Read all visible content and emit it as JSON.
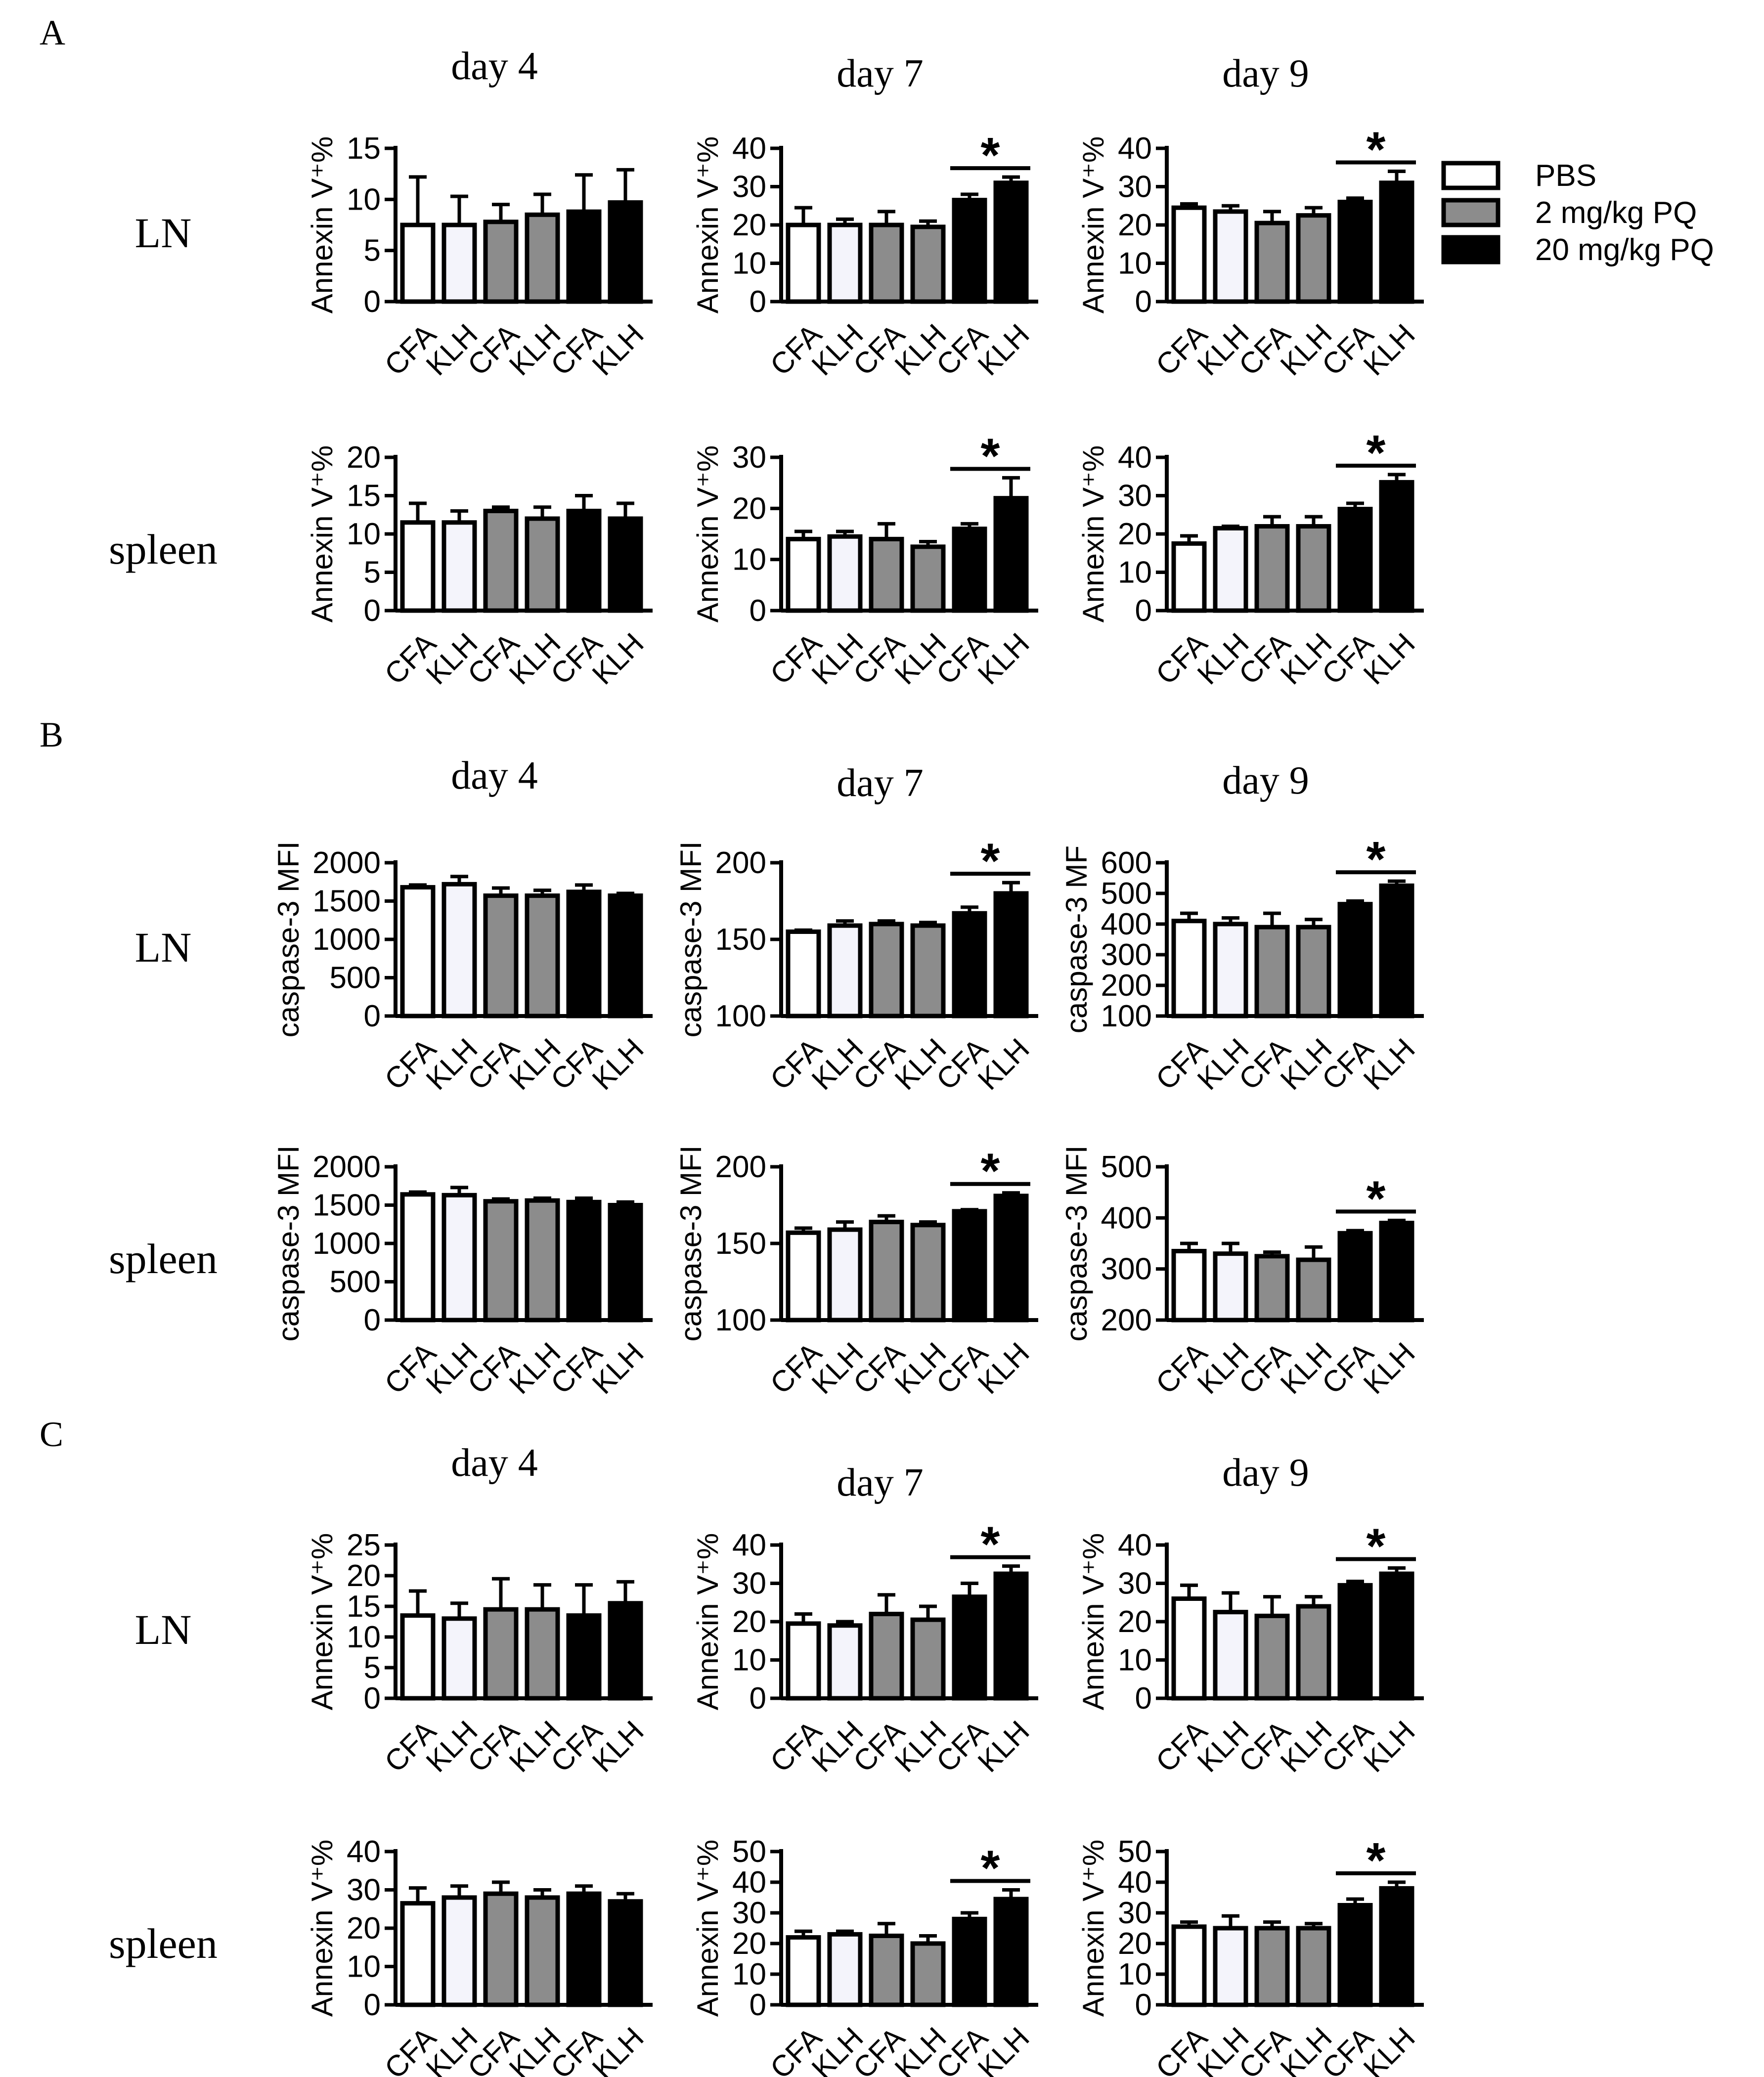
{
  "figure": {
    "sections": [
      {
        "label": "A",
        "rows": [
          "LN",
          "spleen"
        ]
      },
      {
        "label": "B",
        "rows": [
          "LN",
          "spleen"
        ]
      },
      {
        "label": "C",
        "rows": [
          "LN",
          "spleen"
        ]
      }
    ],
    "columns": [
      "day 4",
      "day 7",
      "day 9"
    ],
    "bar_categories": [
      "CFA",
      "KLH",
      "CFA",
      "KLH",
      "CFA",
      "KLH"
    ],
    "significance_marker": "*"
  },
  "legend": {
    "entries": [
      {
        "label": "PBS",
        "color": "#ffffff"
      },
      {
        "label": "2 mg/kg PQ",
        "color": "#8c8c8c"
      },
      {
        "label": "20 mg/kg PQ",
        "color": "#000000"
      }
    ]
  },
  "colors": {
    "pbs_cfa": "#ffffff",
    "pbs_klh": "#f4f4fb",
    "pq2": "#8c8c8c",
    "pq20": "#000000",
    "axis": "#000000"
  },
  "chart_data": [
    {
      "id": "A-LN-day4",
      "section": "A",
      "row": "LN",
      "title": "day 4",
      "type": "bar",
      "ylabel": "Annexin V⁺%",
      "ylim": [
        0,
        15
      ],
      "yticks": [
        "0",
        "5",
        "10",
        "15"
      ],
      "categories": [
        "CFA",
        "KLH",
        "CFA",
        "KLH",
        "CFA",
        "KLH"
      ],
      "values": [
        7.5,
        7.5,
        7.8,
        8.5,
        8.8,
        9.7
      ],
      "errors": [
        4.7,
        2.8,
        1.7,
        2.0,
        3.6,
        3.2
      ],
      "significant": false
    },
    {
      "id": "A-LN-day7",
      "section": "A",
      "row": "LN",
      "title": "day 7",
      "type": "bar",
      "ylabel": "Annexin V⁺%",
      "ylim": [
        0,
        40
      ],
      "yticks": [
        "0",
        "10",
        "20",
        "30",
        "40"
      ],
      "categories": [
        "CFA",
        "KLH",
        "CFA",
        "KLH",
        "CFA",
        "KLH"
      ],
      "values": [
        20,
        20,
        20,
        19.5,
        26.5,
        31
      ],
      "errors": [
        4.5,
        1.5,
        3.5,
        1.5,
        1.5,
        1.5
      ],
      "significant": true
    },
    {
      "id": "A-LN-day9",
      "section": "A",
      "row": "LN",
      "title": "day 9",
      "type": "bar",
      "ylabel": "Annexin V⁺%",
      "ylim": [
        0,
        40
      ],
      "yticks": [
        "0",
        "10",
        "20",
        "30",
        "40"
      ],
      "categories": [
        "CFA",
        "KLH",
        "CFA",
        "KLH",
        "CFA",
        "KLH"
      ],
      "values": [
        24.5,
        23.5,
        20.5,
        22.5,
        26,
        31
      ],
      "errors": [
        1,
        1.5,
        3,
        2,
        1,
        3
      ],
      "significant": true
    },
    {
      "id": "A-spleen-day4",
      "section": "A",
      "row": "spleen",
      "title": "",
      "type": "bar",
      "ylabel": "Annexin V⁺%",
      "ylim": [
        0,
        20
      ],
      "yticks": [
        "0",
        "5",
        "10",
        "15",
        "20"
      ],
      "categories": [
        "CFA",
        "KLH",
        "CFA",
        "KLH",
        "CFA",
        "KLH"
      ],
      "values": [
        11.5,
        11.5,
        13,
        12,
        13,
        12
      ],
      "errors": [
        2.5,
        1.5,
        0.5,
        1.5,
        2,
        2
      ],
      "significant": false
    },
    {
      "id": "A-spleen-day7",
      "section": "A",
      "row": "spleen",
      "title": "",
      "type": "bar",
      "ylabel": "Annexin V⁺%",
      "ylim": [
        0,
        30
      ],
      "yticks": [
        "0",
        "10",
        "20",
        "30"
      ],
      "categories": [
        "CFA",
        "KLH",
        "CFA",
        "KLH",
        "CFA",
        "KLH"
      ],
      "values": [
        14,
        14.5,
        14,
        12.5,
        16,
        22
      ],
      "errors": [
        1.5,
        1,
        3,
        1,
        1,
        4
      ],
      "significant": true
    },
    {
      "id": "A-spleen-day9",
      "section": "A",
      "row": "spleen",
      "title": "",
      "type": "bar",
      "ylabel": "Annexin V⁺%",
      "ylim": [
        0,
        40
      ],
      "yticks": [
        "0",
        "10",
        "20",
        "30",
        "40"
      ],
      "categories": [
        "CFA",
        "KLH",
        "CFA",
        "KLH",
        "CFA",
        "KLH"
      ],
      "values": [
        17.5,
        21.5,
        22,
        22,
        26.5,
        33.5
      ],
      "errors": [
        2,
        0.5,
        2.5,
        2.5,
        1.5,
        2
      ],
      "significant": true
    },
    {
      "id": "B-LN-day4",
      "section": "B",
      "row": "LN",
      "title": "day 4",
      "type": "bar",
      "ylabel": "caspase-3 MFI",
      "ylim": [
        0,
        2000
      ],
      "yticks": [
        "0",
        "500",
        "1000",
        "1500",
        "2000"
      ],
      "categories": [
        "CFA",
        "KLH",
        "CFA",
        "KLH",
        "CFA",
        "KLH"
      ],
      "values": [
        1680,
        1720,
        1570,
        1570,
        1620,
        1570
      ],
      "errors": [
        30,
        100,
        100,
        70,
        90,
        30
      ],
      "significant": false
    },
    {
      "id": "B-LN-day7",
      "section": "B",
      "row": "LN",
      "title": "day 7",
      "type": "bar",
      "ylabel": "caspase-3 MFI",
      "ylim": [
        100,
        200
      ],
      "yticks": [
        "100",
        "150",
        "200"
      ],
      "categories": [
        "CFA",
        "KLH",
        "CFA",
        "KLH",
        "CFA",
        "KLH"
      ],
      "values": [
        155,
        159,
        160,
        159,
        167,
        180
      ],
      "errors": [
        1,
        3,
        2,
        2,
        4,
        7
      ],
      "significant": true
    },
    {
      "id": "B-LN-day9",
      "section": "B",
      "row": "LN",
      "title": "day 9",
      "type": "bar",
      "ylabel": "caspase-3 MF",
      "ylim": [
        100,
        600
      ],
      "yticks": [
        "100",
        "200",
        "300",
        "400",
        "500",
        "600"
      ],
      "categories": [
        "CFA",
        "KLH",
        "CFA",
        "KLH",
        "CFA",
        "KLH"
      ],
      "values": [
        410,
        400,
        390,
        390,
        465,
        525
      ],
      "errors": [
        25,
        20,
        45,
        25,
        10,
        15
      ],
      "significant": true
    },
    {
      "id": "B-spleen-day4",
      "section": "B",
      "row": "spleen",
      "title": "",
      "type": "bar",
      "ylabel": "caspase-3 MFI",
      "ylim": [
        0,
        2000
      ],
      "yticks": [
        "0",
        "500",
        "1000",
        "1500",
        "2000"
      ],
      "categories": [
        "CFA",
        "KLH",
        "CFA",
        "KLH",
        "CFA",
        "KLH"
      ],
      "values": [
        1640,
        1630,
        1550,
        1560,
        1540,
        1500
      ],
      "errors": [
        30,
        100,
        30,
        30,
        50,
        40
      ],
      "significant": false
    },
    {
      "id": "B-spleen-day7",
      "section": "B",
      "row": "spleen",
      "title": "",
      "type": "bar",
      "ylabel": "caspase-3 MFI",
      "ylim": [
        100,
        200
      ],
      "yticks": [
        "100",
        "150",
        "200"
      ],
      "categories": [
        "CFA",
        "KLH",
        "CFA",
        "KLH",
        "CFA",
        "KLH"
      ],
      "values": [
        157,
        159,
        164,
        162,
        171,
        181
      ],
      "errors": [
        3,
        5,
        4,
        2,
        1,
        2
      ],
      "significant": true
    },
    {
      "id": "B-spleen-day9",
      "section": "B",
      "row": "spleen",
      "title": "",
      "type": "bar",
      "ylabel": "caspase-3 MFI",
      "ylim": [
        200,
        500
      ],
      "yticks": [
        "200",
        "300",
        "400",
        "500"
      ],
      "categories": [
        "CFA",
        "KLH",
        "CFA",
        "KLH",
        "CFA",
        "KLH"
      ],
      "values": [
        335,
        330,
        325,
        318,
        370,
        390
      ],
      "errors": [
        15,
        20,
        8,
        25,
        5,
        5
      ],
      "significant": true
    },
    {
      "id": "C-LN-day4",
      "section": "C",
      "row": "LN",
      "title": "day 4",
      "type": "bar",
      "ylabel": "Annexin V⁺%",
      "ylim": [
        0,
        25
      ],
      "yticks": [
        "0",
        "5",
        "10",
        "15",
        "20",
        "25"
      ],
      "categories": [
        "CFA",
        "KLH",
        "CFA",
        "KLH",
        "CFA",
        "KLH"
      ],
      "values": [
        13.5,
        13,
        14.5,
        14.5,
        13.5,
        15.5
      ],
      "errors": [
        4,
        2.5,
        5,
        4,
        5,
        3.5
      ],
      "significant": false
    },
    {
      "id": "C-LN-day7",
      "section": "C",
      "row": "LN",
      "title": "day 7",
      "type": "bar",
      "ylabel": "Annexin V⁺%",
      "ylim": [
        0,
        40
      ],
      "yticks": [
        "0",
        "10",
        "20",
        "30",
        "40"
      ],
      "categories": [
        "CFA",
        "KLH",
        "CFA",
        "KLH",
        "CFA",
        "KLH"
      ],
      "values": [
        19.5,
        19,
        22,
        20.5,
        26.5,
        32.5
      ],
      "errors": [
        2.5,
        1,
        5,
        3.5,
        3.5,
        2
      ],
      "significant": true
    },
    {
      "id": "C-LN-day9",
      "section": "C",
      "row": "LN",
      "title": "day 9",
      "type": "bar",
      "ylabel": "Annexin V⁺%",
      "ylim": [
        0,
        40
      ],
      "yticks": [
        "0",
        "10",
        "20",
        "30",
        "40"
      ],
      "categories": [
        "CFA",
        "KLH",
        "CFA",
        "KLH",
        "CFA",
        "KLH"
      ],
      "values": [
        26,
        22.5,
        21.5,
        24,
        29.5,
        32.5
      ],
      "errors": [
        3.5,
        5,
        5,
        2.5,
        1,
        1.5
      ],
      "significant": true
    },
    {
      "id": "C-spleen-day4",
      "section": "C",
      "row": "spleen",
      "title": "",
      "type": "bar",
      "ylabel": "Annexin V⁺%",
      "ylim": [
        0,
        40
      ],
      "yticks": [
        "0",
        "10",
        "20",
        "30",
        "40"
      ],
      "categories": [
        "CFA",
        "KLH",
        "CFA",
        "KLH",
        "CFA",
        "KLH"
      ],
      "values": [
        26.5,
        28,
        29,
        28,
        29,
        27
      ],
      "errors": [
        4,
        3,
        3,
        2,
        2,
        2
      ],
      "significant": false
    },
    {
      "id": "C-spleen-day7",
      "section": "C",
      "row": "spleen",
      "title": "",
      "type": "bar",
      "ylabel": "Annexin V⁺%",
      "ylim": [
        0,
        50
      ],
      "yticks": [
        "0",
        "10",
        "20",
        "30",
        "40",
        "50"
      ],
      "categories": [
        "CFA",
        "KLH",
        "CFA",
        "KLH",
        "CFA",
        "KLH"
      ],
      "values": [
        22,
        23,
        22.5,
        20,
        28,
        34.5
      ],
      "errors": [
        2,
        1,
        4,
        2.5,
        2,
        3
      ],
      "significant": true
    },
    {
      "id": "C-spleen-day9",
      "section": "C",
      "row": "spleen",
      "title": "",
      "type": "bar",
      "ylabel": "Annexin V⁺%",
      "ylim": [
        0,
        50
      ],
      "yticks": [
        "0",
        "10",
        "20",
        "30",
        "40",
        "50"
      ],
      "categories": [
        "CFA",
        "KLH",
        "CFA",
        "KLH",
        "CFA",
        "KLH"
      ],
      "values": [
        25.5,
        25,
        25,
        25,
        32.5,
        38
      ],
      "errors": [
        1.5,
        4,
        2,
        1.5,
        2,
        2
      ],
      "significant": true
    }
  ]
}
